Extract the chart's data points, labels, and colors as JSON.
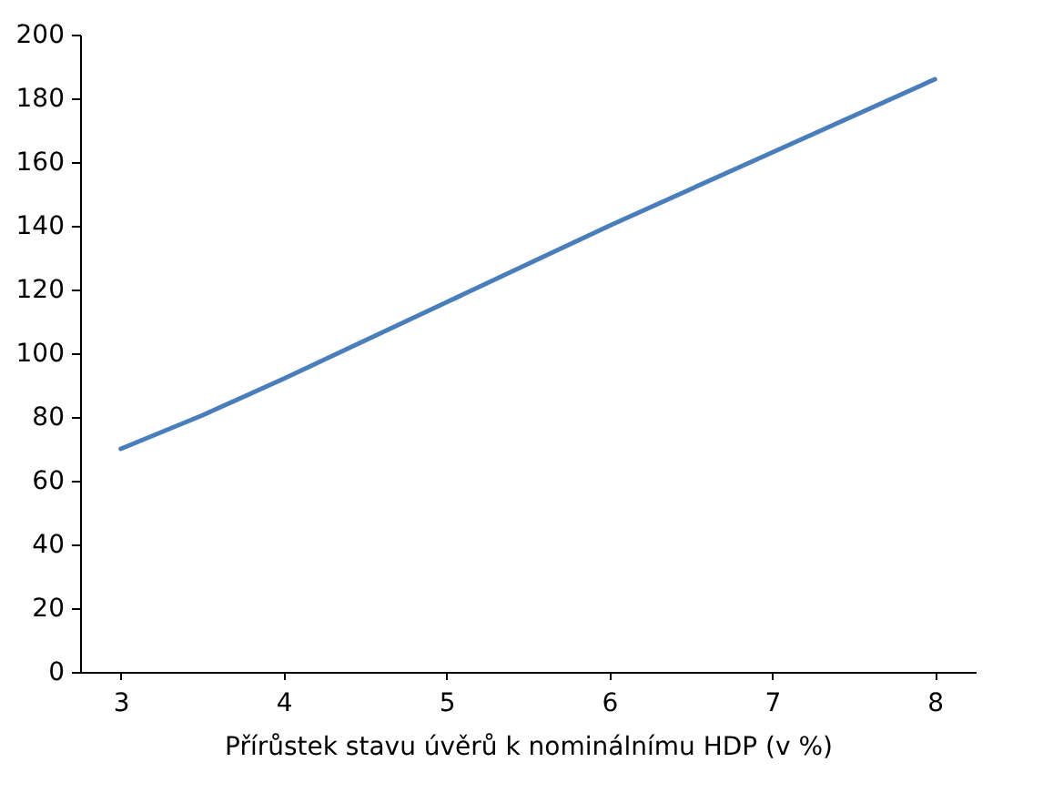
{
  "chart_data": {
    "type": "line",
    "xlabel": "Přírůstek stavu úvěrů k nominálnímu HDP (v %)",
    "x": [
      3,
      3.5,
      4,
      5,
      6,
      7,
      8
    ],
    "series": [
      {
        "color": "#4a7ebb",
        "values": [
          70,
          80.5,
          92,
          116,
          140,
          163,
          186
        ]
      }
    ],
    "xlim": [
      2.75,
      8.25
    ],
    "xticks": [
      3,
      4,
      5,
      6,
      7,
      8
    ],
    "ylim": [
      0,
      200
    ],
    "yticks": [
      0,
      20,
      40,
      60,
      80,
      100,
      120,
      140,
      160,
      180,
      200
    ],
    "grid": false,
    "legend": false,
    "marker": "none",
    "line_style": "solid"
  }
}
